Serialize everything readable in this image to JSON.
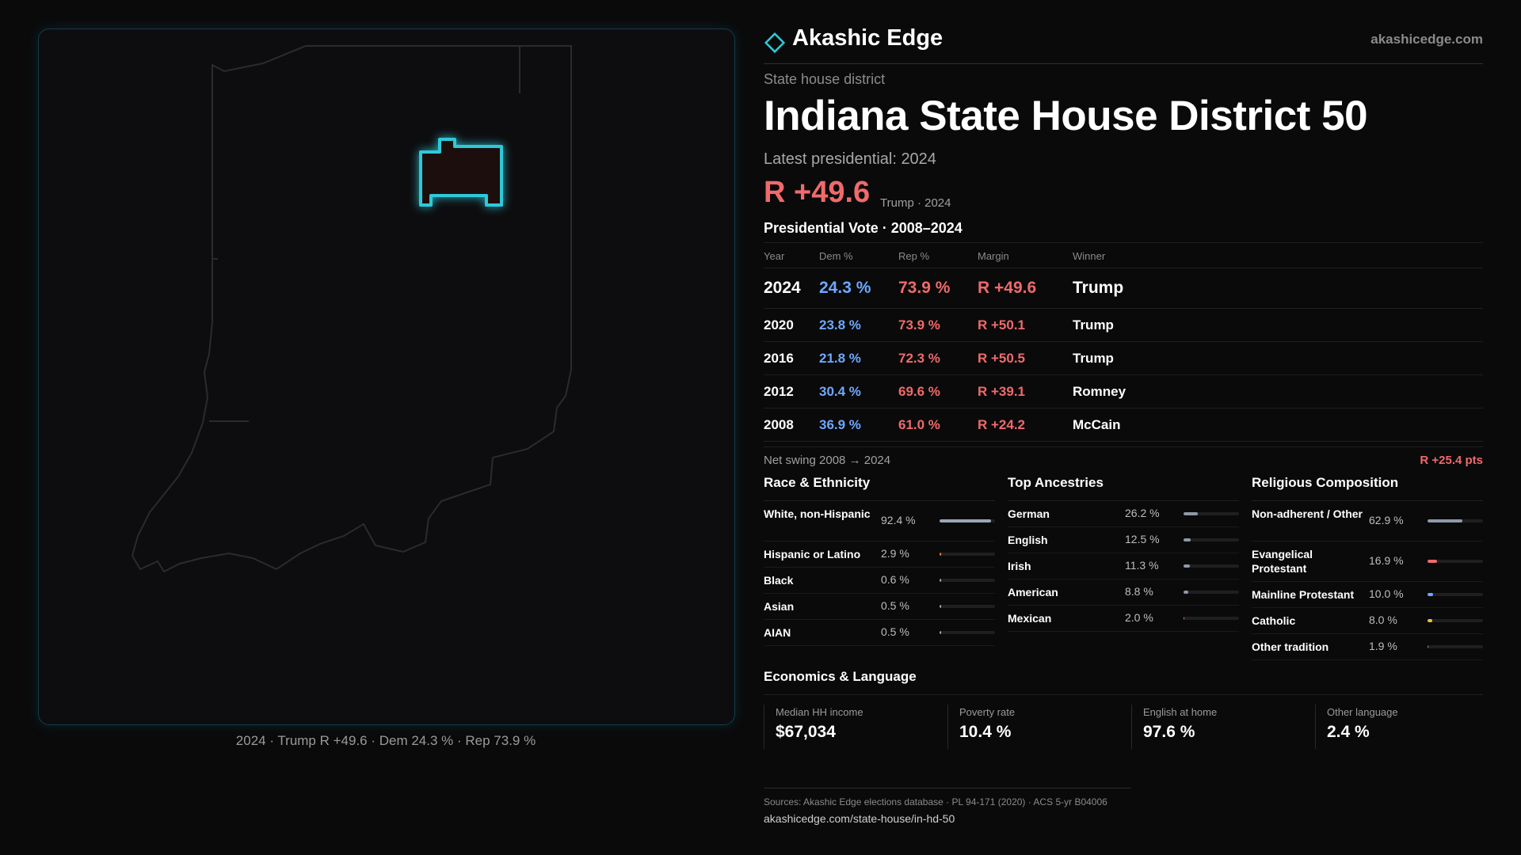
{
  "brand": {
    "name": "Akashic Edge",
    "url": "akashicedge.com",
    "accent_color": "#2ec9d9"
  },
  "kicker": "State house district",
  "title": "Indiana State House District 50",
  "latest_presidential": "Latest presidential: 2024",
  "headline_margin": "R +49.6",
  "headline_sub": "Trump · 2024",
  "vote_section_title": "Presidential Vote · 2008–2024",
  "vote_table": {
    "headers": [
      "Year",
      "Dem %",
      "Rep %",
      "Margin",
      "Winner"
    ],
    "rows": [
      [
        "2024",
        "24.3 %",
        "73.9 %",
        "R +49.6",
        "Trump"
      ],
      [
        "2020",
        "23.8 %",
        "73.9 %",
        "R +50.1",
        "Trump"
      ],
      [
        "2016",
        "21.8 %",
        "72.3 %",
        "R +50.5",
        "Trump"
      ],
      [
        "2012",
        "30.4 %",
        "69.6 %",
        "R +39.1",
        "Romney"
      ],
      [
        "2008",
        "36.9 %",
        "61.0 %",
        "R +24.2",
        "McCain"
      ]
    ]
  },
  "net_swing": {
    "label": "Net swing 2008 → 2024",
    "value": "R +25.4 pts"
  },
  "race": {
    "title": "Race & Ethnicity",
    "items": [
      {
        "label": "White, non-Hispanic",
        "value": "92.4 %",
        "fraction": 0.924,
        "color": "#9aa7b8"
      },
      {
        "label": "Hispanic or Latino",
        "value": "2.9 %",
        "fraction": 0.029,
        "color": "#e8823c"
      },
      {
        "label": "Black",
        "value": "0.6 %",
        "fraction": 0.006,
        "color": "#9aa7b8"
      },
      {
        "label": "Asian",
        "value": "0.5 %",
        "fraction": 0.005,
        "color": "#9aa7b8"
      },
      {
        "label": "AIAN",
        "value": "0.5 %",
        "fraction": 0.005,
        "color": "#9aa7b8"
      }
    ]
  },
  "ancestry": {
    "title": "Top Ancestries",
    "items": [
      {
        "label": "German",
        "value": "26.2 %",
        "fraction": 0.262,
        "color": "#8e99a8"
      },
      {
        "label": "English",
        "value": "12.5 %",
        "fraction": 0.125,
        "color": "#8e99a8"
      },
      {
        "label": "Irish",
        "value": "11.3 %",
        "fraction": 0.113,
        "color": "#8e99a8"
      },
      {
        "label": "American",
        "value": "8.8 %",
        "fraction": 0.088,
        "color": "#8e99a8"
      },
      {
        "label": "Mexican",
        "value": "2.0 %",
        "fraction": 0.02,
        "color": "#e8823c"
      }
    ]
  },
  "religion": {
    "title": "Religious Composition",
    "items": [
      {
        "label": "Non-adherent / Other",
        "value": "62.9 %",
        "fraction": 0.629,
        "color": "#8e99a8"
      },
      {
        "label": "Evangelical Protestant",
        "value": "16.9 %",
        "fraction": 0.169,
        "color": "#f06a6a"
      },
      {
        "label": "Mainline Protestant",
        "value": "10.0 %",
        "fraction": 0.1,
        "color": "#6ea8ff"
      },
      {
        "label": "Catholic",
        "value": "8.0 %",
        "fraction": 0.08,
        "color": "#e8c23c"
      },
      {
        "label": "Other tradition",
        "value": "1.9 %",
        "fraction": 0.019,
        "color": "#8e99a8"
      }
    ]
  },
  "economics": {
    "title": "Economics & Language",
    "cells": [
      {
        "label": "Median HH income",
        "value": "$67,034"
      },
      {
        "label": "Poverty rate",
        "value": "10.4 %"
      },
      {
        "label": "English at home",
        "value": "97.6 %"
      },
      {
        "label": "Other language",
        "value": "2.4 %"
      }
    ]
  },
  "map_caption": "2024 · Trump R +49.6 · Dem 24.3 % · Rep 73.9 %",
  "footer": {
    "sources": "Sources: Akashic Edge elections database · PL 94-171 (2020) · ACS 5-yr B04006",
    "url": "akashicedge.com/state-house/in-hd-50"
  },
  "colors": {
    "dem": "#6ea8ff",
    "rep": "#f06a6a",
    "district_outline": "#2ec9d9"
  }
}
